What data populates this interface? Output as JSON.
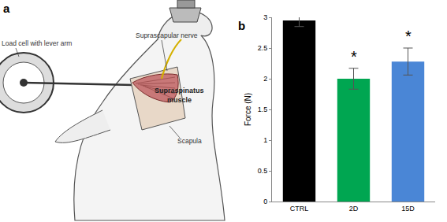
{
  "diagram": {
    "panel": "a",
    "labels": {
      "load_cell": "Load cell with lever arm",
      "nerve": "Suprascapular nerve",
      "muscle": "Supraspinatus muscle",
      "scapula": "Scapula"
    }
  },
  "chart_data": {
    "type": "bar",
    "title": "b",
    "y_label": "Force (N)",
    "categories": [
      "CTRL",
      "2D",
      "15D"
    ],
    "values": [
      2.95,
      2.0,
      2.28
    ],
    "errors": [
      0.1,
      0.17,
      0.22
    ],
    "colors": [
      "#000000",
      "#00a651",
      "#4a86d6"
    ],
    "annotations": [
      {
        "category": "2D",
        "text": "*"
      },
      {
        "category": "15D",
        "text": "*"
      }
    ],
    "ylim": [
      0,
      3
    ],
    "yticks": [
      0,
      0.5,
      1,
      1.5,
      2,
      2.5,
      3
    ],
    "grid": false
  }
}
